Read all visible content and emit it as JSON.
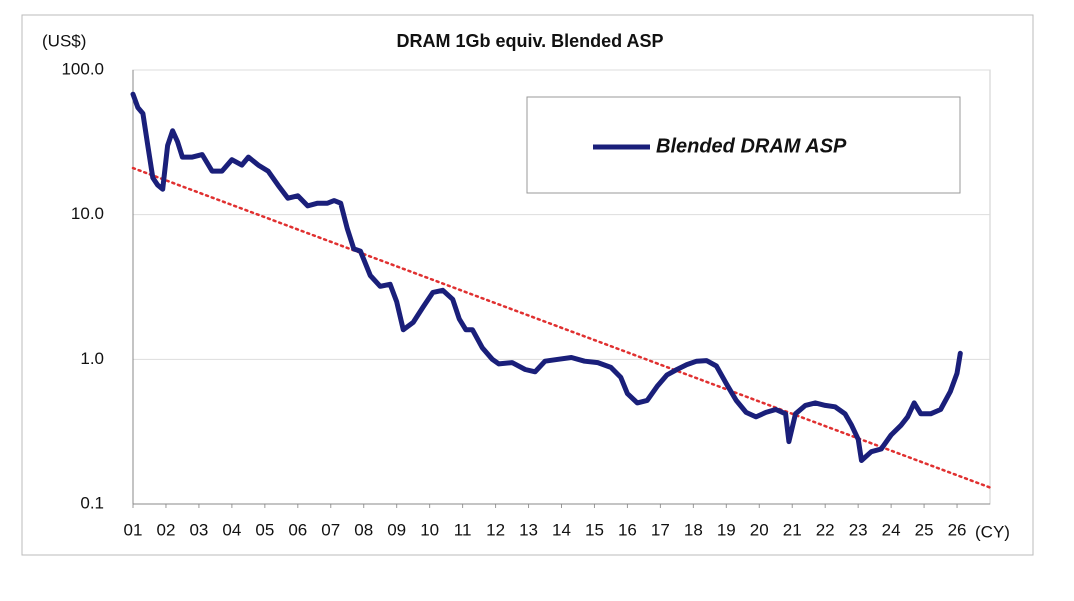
{
  "chart_data": {
    "type": "line",
    "title": "DRAM 1Gb equiv. Blended ASP",
    "y_label": "(US$)",
    "x_label": "(CY)",
    "log_y": true,
    "grid": true,
    "legend": "top-right",
    "x": [
      1.0,
      1.15,
      1.3,
      1.45,
      1.6,
      1.75,
      1.9,
      2.05,
      2.2,
      2.35,
      2.5,
      2.8,
      3.1,
      3.4,
      3.7,
      4.0,
      4.3,
      4.5,
      4.8,
      5.1,
      5.4,
      5.7,
      6.0,
      6.3,
      6.6,
      6.9,
      7.1,
      7.3,
      7.5,
      7.7,
      7.9,
      8.2,
      8.5,
      8.8,
      9.0,
      9.2,
      9.5,
      9.8,
      10.1,
      10.4,
      10.7,
      10.9,
      11.1,
      11.3,
      11.6,
      11.9,
      12.1,
      12.5,
      12.9,
      13.2,
      13.5,
      13.9,
      14.3,
      14.7,
      15.1,
      15.5,
      15.8,
      16.0,
      16.3,
      16.6,
      16.9,
      17.2,
      17.5,
      17.8,
      18.1,
      18.4,
      18.7,
      19.0,
      19.3,
      19.6,
      19.9,
      20.2,
      20.5,
      20.8,
      20.9,
      21.1,
      21.4,
      21.7,
      22.0,
      22.3,
      22.6,
      22.8,
      23.0,
      23.1,
      23.4,
      23.7,
      24.0,
      24.3,
      24.5,
      24.7,
      24.9,
      25.2,
      25.5,
      25.8,
      26.0,
      26.1
    ],
    "series": [
      {
        "name": "Blended DRAM ASP",
        "color": "#1a1f7a",
        "values": [
          68,
          55,
          50,
          30,
          18,
          16,
          15,
          30,
          38,
          32,
          25,
          25,
          26,
          20,
          20,
          24,
          22,
          25,
          22,
          20,
          16,
          13,
          13.5,
          11.5,
          12,
          12,
          12.5,
          12,
          8,
          5.8,
          5.6,
          3.8,
          3.2,
          3.3,
          2.5,
          1.6,
          1.8,
          2.3,
          2.9,
          3.0,
          2.6,
          1.9,
          1.6,
          1.6,
          1.2,
          1.0,
          0.93,
          0.95,
          0.85,
          0.82,
          0.97,
          1.0,
          1.03,
          0.97,
          0.95,
          0.88,
          0.75,
          0.58,
          0.5,
          0.52,
          0.65,
          0.78,
          0.85,
          0.92,
          0.97,
          0.98,
          0.9,
          0.68,
          0.52,
          0.43,
          0.4,
          0.43,
          0.45,
          0.42,
          0.27,
          0.42,
          0.48,
          0.5,
          0.48,
          0.47,
          0.42,
          0.35,
          0.28,
          0.2,
          0.23,
          0.24,
          0.3,
          0.35,
          0.4,
          0.5,
          0.42,
          0.42,
          0.45,
          0.6,
          0.8,
          1.1
        ]
      }
    ],
    "trendline": {
      "x": [
        1,
        27
      ],
      "values": [
        21,
        0.13
      ],
      "color": "#e03030"
    },
    "xlim": [
      1,
      27
    ],
    "xticks": [
      {
        "value": 1,
        "label": "01"
      },
      {
        "value": 2,
        "label": "02"
      },
      {
        "value": 3,
        "label": "03"
      },
      {
        "value": 4,
        "label": "04"
      },
      {
        "value": 5,
        "label": "05"
      },
      {
        "value": 6,
        "label": "06"
      },
      {
        "value": 7,
        "label": "07"
      },
      {
        "value": 8,
        "label": "08"
      },
      {
        "value": 9,
        "label": "09"
      },
      10,
      11,
      12,
      13,
      14,
      15,
      16,
      17,
      18,
      19,
      20,
      21,
      22,
      23,
      24,
      25,
      26
    ],
    "ylim": [
      0.1,
      100
    ],
    "yticks": [
      {
        "value": 100,
        "label": "100.0"
      },
      {
        "value": 10,
        "label": "10.0"
      },
      {
        "value": 1,
        "label": "1.0"
      },
      0.1
    ]
  }
}
